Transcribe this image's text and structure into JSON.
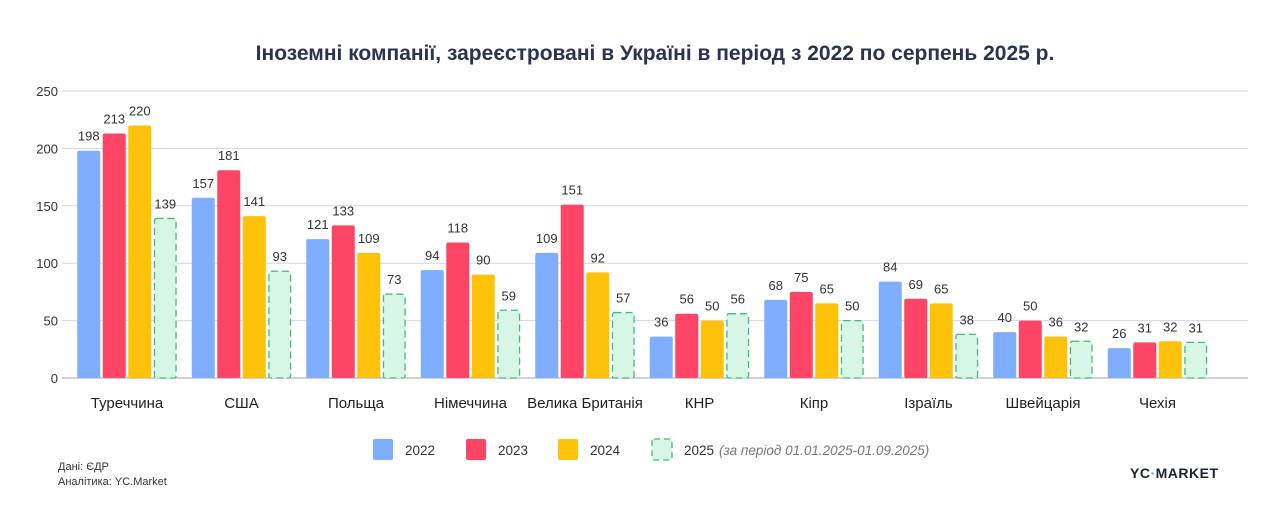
{
  "chart_data": {
    "type": "bar",
    "title": "Іноземні компанії, зареєстровані в Україні в період з 2022 по серпень 2025 р.",
    "xlabel": "",
    "ylabel": "",
    "ylim": [
      0,
      250
    ],
    "yticks": [
      0,
      50,
      100,
      150,
      200,
      250
    ],
    "grid": true,
    "legend_position": "bottom",
    "categories": [
      "Туреччина",
      "США",
      "Польща",
      "Німеччина",
      "Велика Британія",
      "КНР",
      "Кіпр",
      "Ізраїль",
      "Швейцарія",
      "Чехія"
    ],
    "series": [
      {
        "name": "2022",
        "color": "#7fadff",
        "style": "solid",
        "values": [
          198,
          157,
          121,
          94,
          109,
          36,
          68,
          84,
          40,
          26
        ]
      },
      {
        "name": "2023",
        "color": "#ff4566",
        "style": "solid",
        "values": [
          213,
          181,
          133,
          118,
          151,
          56,
          75,
          69,
          50,
          31
        ]
      },
      {
        "name": "2024",
        "color": "#ffc20a",
        "style": "solid",
        "values": [
          220,
          141,
          109,
          90,
          92,
          50,
          65,
          65,
          36,
          32
        ]
      },
      {
        "name": "2025",
        "note": "(за період 01.01.2025-01.09.2025)",
        "color": "#d8f6e5",
        "stroke": "#3dbd78",
        "style": "dashed",
        "values": [
          139,
          93,
          73,
          59,
          57,
          56,
          50,
          38,
          32,
          31
        ]
      }
    ]
  },
  "footer": {
    "source": "Дані: ЄДР",
    "analytics": "Аналітика: YC.Market",
    "logo": "YC MARKET"
  }
}
